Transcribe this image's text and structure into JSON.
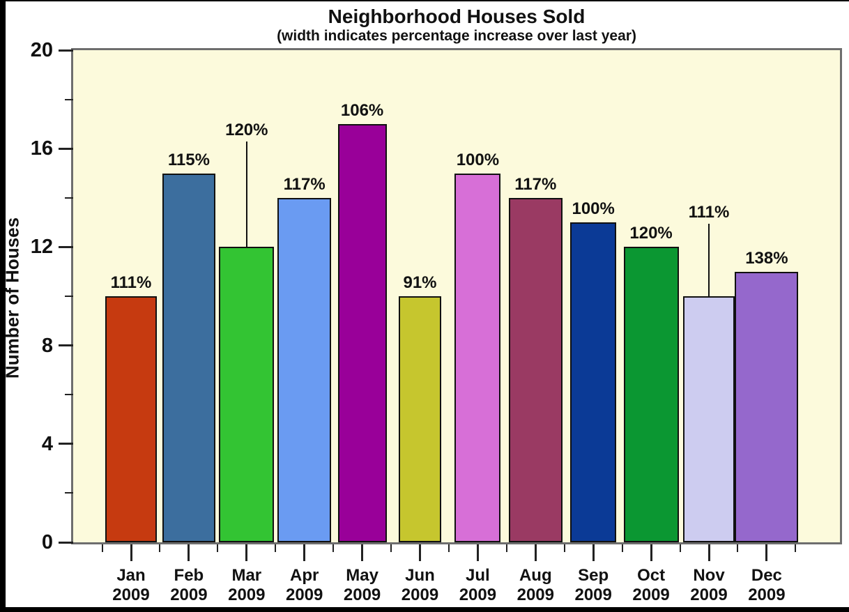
{
  "window": {
    "background": "#FFFFFF",
    "frame_border_color": "#000000"
  },
  "chart_data": {
    "type": "bar",
    "title": "Neighborhood Houses Sold",
    "subtitle": "(width indicates percentage increase over last year)",
    "ylabel": "Number of Houses",
    "xlabel": "",
    "ylim": [
      0,
      20
    ],
    "y_major_ticks": [
      0,
      4,
      8,
      12,
      16,
      20
    ],
    "y_minor_ticks": [
      2,
      6,
      10,
      14,
      18
    ],
    "grid": "off",
    "legend": "none",
    "plot_background": "#FCFADC",
    "categories": [
      "Jan",
      "Feb",
      "Mar",
      "Apr",
      "May",
      "Jun",
      "Jul",
      "Aug",
      "Sep",
      "Oct",
      "Nov",
      "Dec"
    ],
    "category_year": "2009",
    "values": [
      10,
      15,
      12,
      14,
      17,
      10,
      15,
      14,
      13,
      12,
      10,
      11
    ],
    "bar_labels": [
      "111%",
      "115%",
      "120%",
      "117%",
      "106%",
      "91%",
      "100%",
      "117%",
      "100%",
      "120%",
      "111%",
      "138%"
    ],
    "bar_width_percent": [
      111,
      115,
      120,
      117,
      106,
      91,
      100,
      117,
      100,
      120,
      111,
      138
    ],
    "bar_colors": [
      "#C63A10",
      "#3C6E9E",
      "#33C433",
      "#6A9BF2",
      "#990099",
      "#C6C62E",
      "#D76FD7",
      "#9A3A63",
      "#0B3A96",
      "#0B9732",
      "#CDCCF0",
      "#9568CC"
    ],
    "leader_lines": [
      {
        "index": 2,
        "label_at_value": 16.3
      },
      {
        "index": 10,
        "label_at_value": 12.95
      }
    ]
  }
}
